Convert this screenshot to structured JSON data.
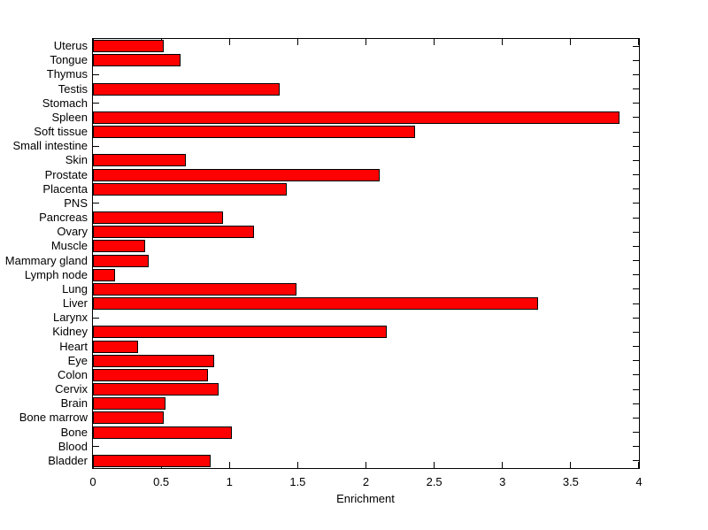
{
  "chart_data": {
    "type": "bar",
    "orientation": "horizontal",
    "title": "",
    "xlabel": "Enrichment",
    "ylabel": "",
    "xlim": [
      0,
      4
    ],
    "x_ticks": [
      0,
      0.5,
      1,
      1.5,
      2,
      2.5,
      3,
      3.5,
      4
    ],
    "x_tick_labels": [
      "0",
      "0.5",
      "1",
      "1.5",
      "2",
      "2.5",
      "3",
      "3.5",
      "4"
    ],
    "grid": false,
    "legend": "none",
    "bar_color": "#ff0000",
    "bar_border_color": "#000000",
    "axis_color": "#000000",
    "background_color": "#ffffff",
    "categories": [
      "Uterus",
      "Tongue",
      "Thymus",
      "Testis",
      "Stomach",
      "Spleen",
      "Soft tissue",
      "Small intestine",
      "Skin",
      "Prostate",
      "Placenta",
      "PNS",
      "Pancreas",
      "Ovary",
      "Muscle",
      "Mammary gland",
      "Lymph node",
      "Lung",
      "Liver",
      "Larynx",
      "Kidney",
      "Heart",
      "Eye",
      "Colon",
      "Cervix",
      "Brain",
      "Bone marrow",
      "Bone",
      "Blood",
      "Bladder"
    ],
    "values": [
      0.52,
      0.64,
      0,
      1.37,
      0,
      3.86,
      2.36,
      0,
      0.68,
      2.1,
      1.42,
      0,
      0.95,
      1.18,
      0.38,
      0.41,
      0.16,
      1.49,
      3.26,
      0,
      2.15,
      0.33,
      0.89,
      0.84,
      0.92,
      0.53,
      0.52,
      1.02,
      0,
      0.86
    ]
  }
}
